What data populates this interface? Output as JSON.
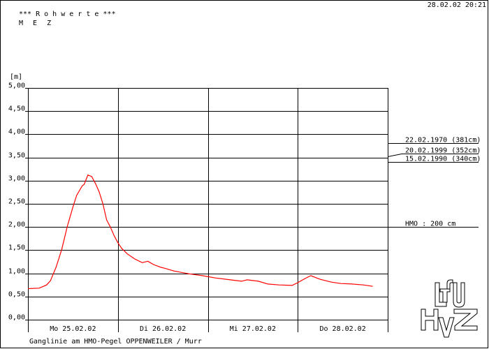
{
  "header": {
    "title": "*** R o h w e r t e ***",
    "timezone": "M E Z",
    "timestamp": "28.02.02 20:21"
  },
  "footer": {
    "caption": "Ganglinie am HMO-Pegel OPPENWEILER / Murr"
  },
  "logos": [
    "LfU",
    "HVZ"
  ],
  "colors": {
    "series": "#ff0000",
    "grid": "#000000",
    "background": "#ffffff"
  },
  "chart_data": {
    "type": "line",
    "title": "",
    "ylabel": "[m]",
    "xlabel": "",
    "ylim": [
      0,
      5
    ],
    "yticks": [
      "0,00",
      "0,50",
      "1,00",
      "1,50",
      "2,00",
      "2,50",
      "3,00",
      "3,50",
      "4,00",
      "4,50",
      "5,00"
    ],
    "xlim": [
      "2002-02-25 00:00",
      "2002-02-29 00:00"
    ],
    "xtick_labels": [
      "Mo 25.02.02",
      "Di 26.02.02",
      "Mi 27.02.02",
      "Do 28.02.02"
    ],
    "grid": true,
    "series": [
      {
        "color": "#ff0000",
        "points": [
          [
            "2002-02-25 00:00",
            0.67
          ],
          [
            "2002-02-25 03:00",
            0.68
          ],
          [
            "2002-02-25 05:00",
            0.75
          ],
          [
            "2002-02-25 06:00",
            0.84
          ],
          [
            "2002-02-25 07:30",
            1.13
          ],
          [
            "2002-02-25 09:00",
            1.51
          ],
          [
            "2002-02-25 10:30",
            2.01
          ],
          [
            "2002-02-25 12:00",
            2.43
          ],
          [
            "2002-02-25 13:00",
            2.68
          ],
          [
            "2002-02-25 14:30",
            2.89
          ],
          [
            "2002-02-25 15:00",
            2.92
          ],
          [
            "2002-02-25 16:00",
            3.12
          ],
          [
            "2002-02-25 17:00",
            3.09
          ],
          [
            "2002-02-25 18:00",
            2.94
          ],
          [
            "2002-02-25 19:00",
            2.76
          ],
          [
            "2002-02-25 20:00",
            2.5
          ],
          [
            "2002-02-25 21:00",
            2.15
          ],
          [
            "2002-02-25 22:00",
            2.0
          ],
          [
            "2002-02-25 23:00",
            1.81
          ],
          [
            "2002-02-26 00:00",
            1.66
          ],
          [
            "2002-02-26 01:00",
            1.54
          ],
          [
            "2002-02-26 02:30",
            1.42
          ],
          [
            "2002-02-26 04:30",
            1.31
          ],
          [
            "2002-02-26 06:30",
            1.23
          ],
          [
            "2002-02-26 08:00",
            1.26
          ],
          [
            "2002-02-26 09:30",
            1.19
          ],
          [
            "2002-02-26 11:30",
            1.13
          ],
          [
            "2002-02-26 12:30",
            1.11
          ],
          [
            "2002-02-26 15:00",
            1.05
          ],
          [
            "2002-02-26 19:00",
            0.99
          ],
          [
            "2002-02-26 22:30",
            0.95
          ],
          [
            "2002-02-27 02:00",
            0.9
          ],
          [
            "2002-02-27 06:00",
            0.86
          ],
          [
            "2002-02-27 09:00",
            0.83
          ],
          [
            "2002-02-27 10:30",
            0.86
          ],
          [
            "2002-02-27 13:30",
            0.83
          ],
          [
            "2002-02-27 16:00",
            0.77
          ],
          [
            "2002-02-27 19:00",
            0.75
          ],
          [
            "2002-02-27 22:30",
            0.74
          ],
          [
            "2002-02-28 00:00",
            0.8
          ],
          [
            "2002-02-28 02:00",
            0.89
          ],
          [
            "2002-02-28 03:30",
            0.95
          ],
          [
            "2002-02-28 06:00",
            0.87
          ],
          [
            "2002-02-28 09:00",
            0.81
          ],
          [
            "2002-02-28 11:30",
            0.78
          ],
          [
            "2002-02-28 14:30",
            0.77
          ],
          [
            "2002-02-28 17:30",
            0.75
          ],
          [
            "2002-02-28 20:00",
            0.72
          ]
        ]
      }
    ],
    "reference_lines": [
      {
        "label": "22.02.1970 (381cm)",
        "value": 3.81
      },
      {
        "label": "20.02.1999 (352cm)",
        "value": 3.52
      },
      {
        "label": "15.02.1990 (340cm)",
        "value": 3.4
      },
      {
        "label": "HMO : 200 cm",
        "value": 2.0
      }
    ]
  }
}
